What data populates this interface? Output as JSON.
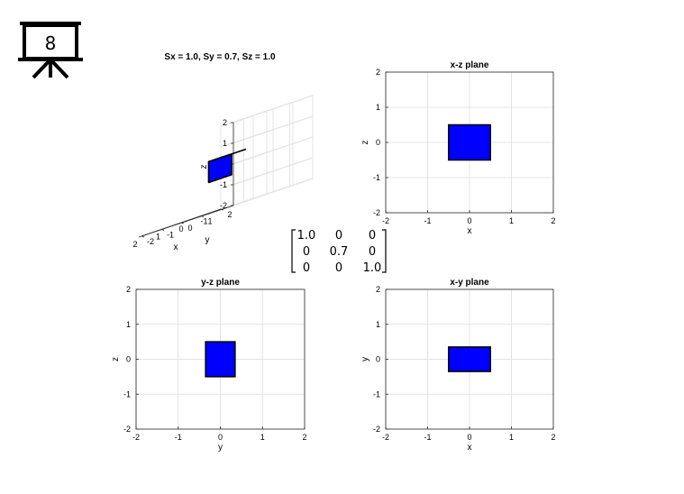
{
  "slide_number": "8",
  "matrix": {
    "rows": [
      [
        "1.0",
        "0",
        "0"
      ],
      [
        "0",
        "0.7",
        "0"
      ],
      [
        "0",
        "0",
        "1.0"
      ]
    ],
    "highlight": {
      "row": 1,
      "col": 1
    },
    "highlight_color": "#e00000"
  },
  "colors": {
    "box_fill": "#0000ff",
    "box_edge": "#000000",
    "grid": "#e4e4e4"
  },
  "chart_data": [
    {
      "type": "3d-box",
      "title": "Sx = 1.0, Sy = 0.7, Sz = 1.0",
      "xlabel": "x",
      "ylabel": "y",
      "zlabel": "z",
      "xlim": [
        -2,
        2
      ],
      "ylim": [
        -2,
        2
      ],
      "zlim": [
        -2,
        2
      ],
      "xticks": [
        "-1",
        "0",
        "1",
        "2"
      ],
      "yticks": [
        "-2",
        "-1",
        "0",
        "1",
        "2"
      ],
      "zticks": [
        "-2",
        "-1",
        "0",
        "1",
        "2"
      ],
      "box": {
        "x": [
          -0.5,
          0.5
        ],
        "y": [
          -0.35,
          0.35
        ],
        "z": [
          -0.5,
          0.5
        ]
      },
      "grid": true
    },
    {
      "type": "rect",
      "title": "x-z plane",
      "xlabel": "x",
      "ylabel": "z",
      "xlim": [
        -2,
        2
      ],
      "ylim": [
        -2,
        2
      ],
      "xticks": [
        "-2",
        "-1",
        "0",
        "1",
        "2"
      ],
      "yticks": [
        "-2",
        "-1",
        "0",
        "1",
        "2"
      ],
      "rect": {
        "x": [
          -0.5,
          0.5
        ],
        "y": [
          -0.5,
          0.5
        ]
      },
      "grid": true
    },
    {
      "type": "rect",
      "title": "y-z plane",
      "xlabel": "y",
      "ylabel": "z",
      "xlim": [
        -2,
        2
      ],
      "ylim": [
        -2,
        2
      ],
      "xticks": [
        "-2",
        "-1",
        "0",
        "1",
        "2"
      ],
      "yticks": [
        "-2",
        "-1",
        "0",
        "1",
        "2"
      ],
      "rect": {
        "x": [
          -0.35,
          0.35
        ],
        "y": [
          -0.5,
          0.5
        ]
      },
      "grid": true
    },
    {
      "type": "rect",
      "title": "x-y plane",
      "xlabel": "x",
      "ylabel": "y",
      "xlim": [
        -2,
        2
      ],
      "ylim": [
        -2,
        2
      ],
      "xticks": [
        "-2",
        "-1",
        "0",
        "1",
        "2"
      ],
      "yticks": [
        "-2",
        "-1",
        "0",
        "1",
        "2"
      ],
      "rect": {
        "x": [
          -0.5,
          0.5
        ],
        "y": [
          -0.35,
          0.35
        ]
      },
      "grid": true
    }
  ]
}
